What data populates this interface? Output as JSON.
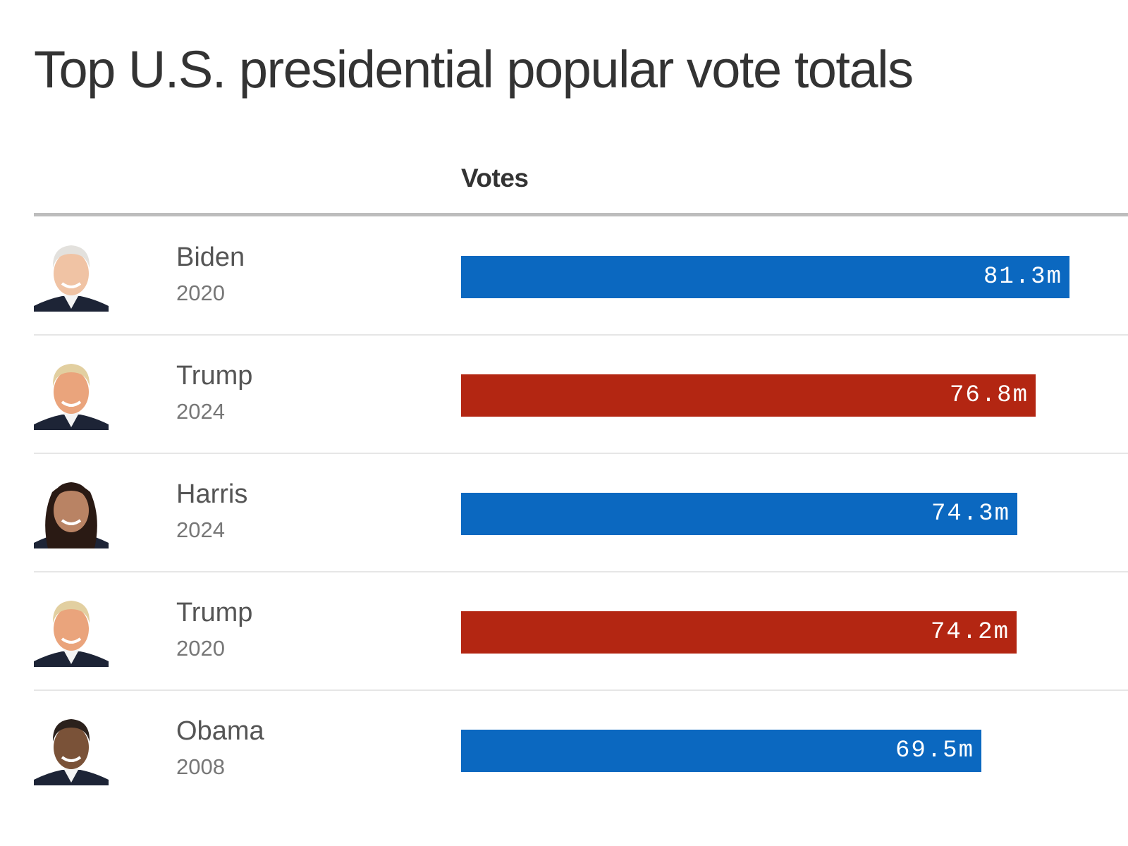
{
  "title": "Top U.S. presidential popular vote totals",
  "column_header": "Votes",
  "colors": {
    "democrat": "#0b68c0",
    "republican": "#b32612"
  },
  "chart_data": {
    "type": "bar",
    "orientation": "horizontal",
    "title": "Top U.S. presidential popular vote totals",
    "xlabel": "Votes",
    "ylabel": "",
    "xlim": [
      0,
      81.3
    ],
    "unit": "millions",
    "grid": false,
    "categories": [
      "Biden 2020",
      "Trump 2024",
      "Harris 2024",
      "Trump 2020",
      "Obama 2008"
    ],
    "values": [
      81.3,
      76.8,
      74.3,
      74.2,
      69.5
    ],
    "rows": [
      {
        "name": "Biden",
        "year": "2020",
        "value": 81.3,
        "label": "81.3m",
        "party": "democrat",
        "portrait": "biden-portrait"
      },
      {
        "name": "Trump",
        "year": "2024",
        "value": 76.8,
        "label": "76.8m",
        "party": "republican",
        "portrait": "trump-portrait"
      },
      {
        "name": "Harris",
        "year": "2024",
        "value": 74.3,
        "label": "74.3m",
        "party": "democrat",
        "portrait": "harris-portrait"
      },
      {
        "name": "Trump",
        "year": "2020",
        "value": 74.2,
        "label": "74.2m",
        "party": "republican",
        "portrait": "trump-portrait"
      },
      {
        "name": "Obama",
        "year": "2008",
        "value": 69.5,
        "label": "69.5m",
        "party": "democrat",
        "portrait": "obama-portrait"
      }
    ]
  }
}
